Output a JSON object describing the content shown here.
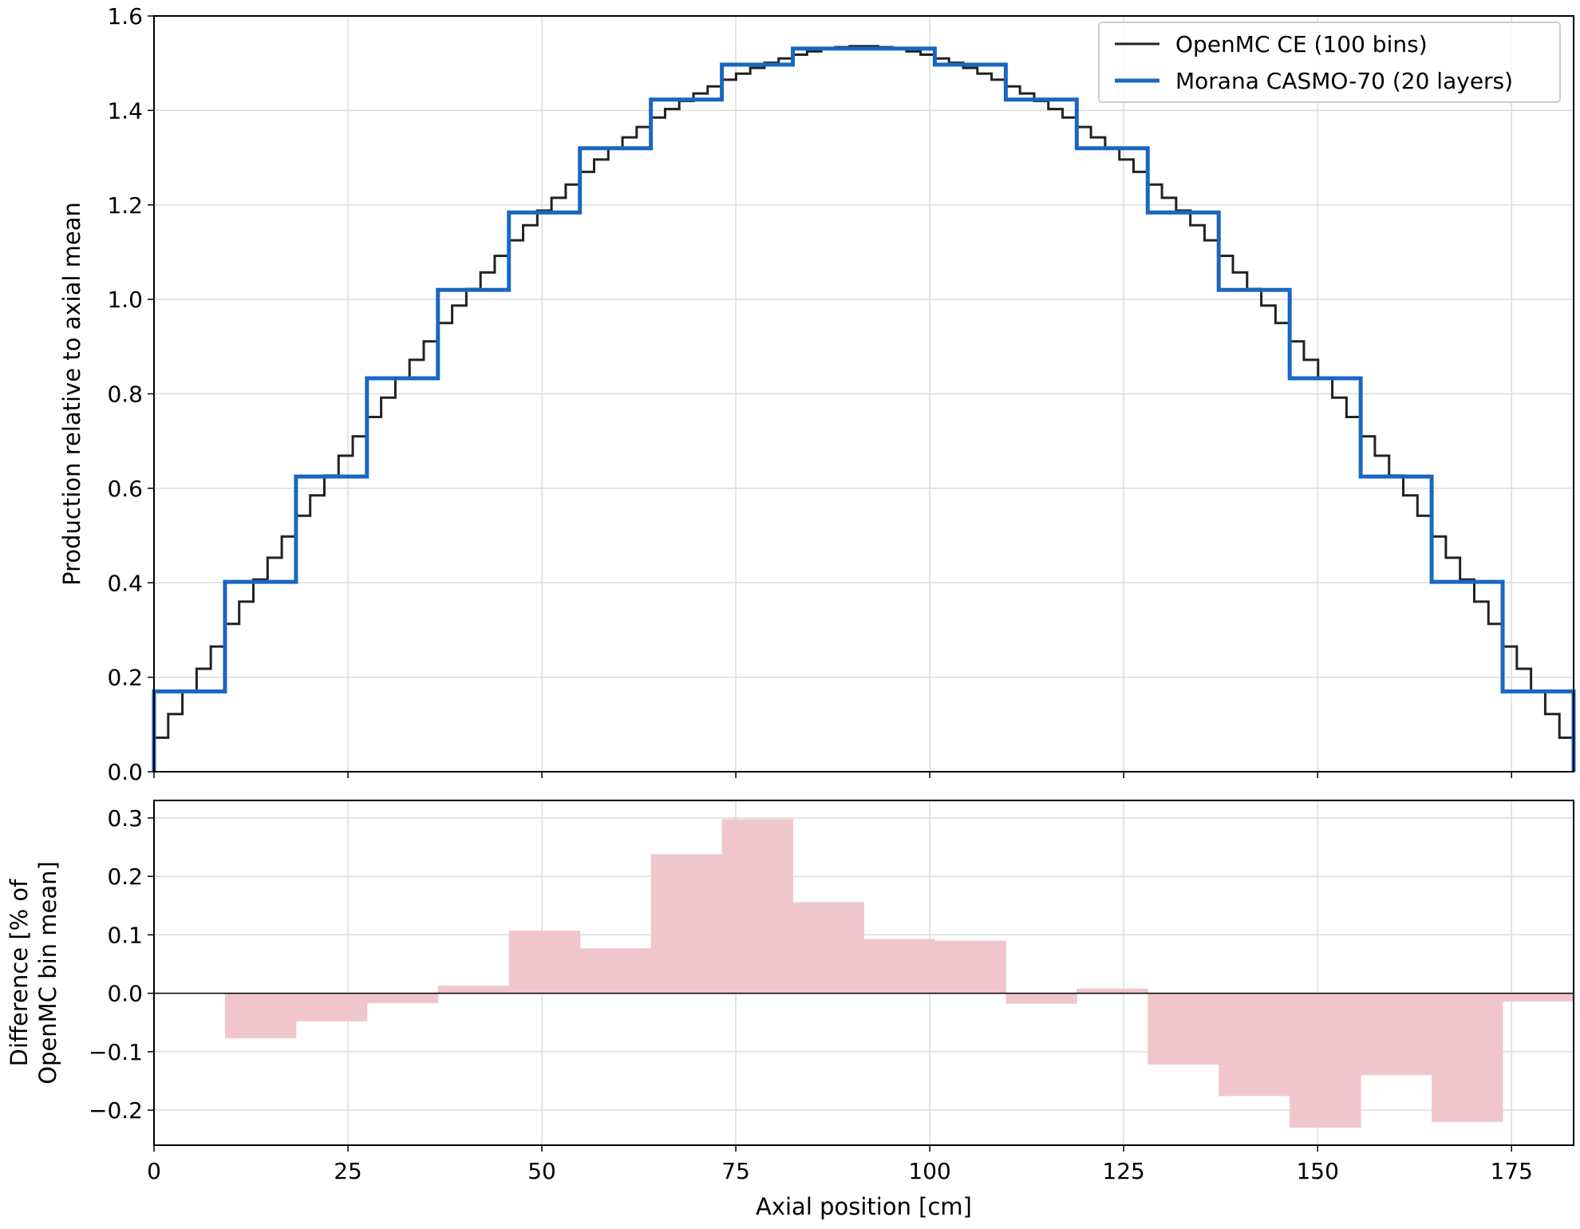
{
  "chart_data": [
    {
      "type": "line",
      "subtype": "step",
      "ylabel": "Production relative to axial mean",
      "xlim": [
        0,
        183
      ],
      "ylim": [
        0,
        1.6
      ],
      "xticks": [
        0,
        25,
        50,
        75,
        100,
        125,
        150,
        175
      ],
      "yticks": [
        0.0,
        0.2,
        0.4,
        0.6,
        0.8,
        1.0,
        1.2,
        1.4,
        1.6
      ],
      "ytick_labels": [
        "0.0",
        "0.2",
        "0.4",
        "0.6",
        "0.8",
        "1.0",
        "1.2",
        "1.4",
        "1.6"
      ],
      "grid": true,
      "legend_position": "top-right",
      "series": [
        {
          "name": "OpenMC CE (100 bins)",
          "color": "#222222",
          "bin_edges_range": [
            0,
            183
          ],
          "bins": 100,
          "values": [
            0.072,
            0.122,
            0.17,
            0.218,
            0.265,
            0.313,
            0.36,
            0.407,
            0.453,
            0.498,
            0.542,
            0.585,
            0.627,
            0.669,
            0.71,
            0.751,
            0.792,
            0.832,
            0.872,
            0.911,
            0.95,
            0.987,
            1.022,
            1.057,
            1.092,
            1.125,
            1.157,
            1.188,
            1.215,
            1.243,
            1.27,
            1.296,
            1.32,
            1.343,
            1.365,
            1.385,
            1.403,
            1.42,
            1.436,
            1.451,
            1.465,
            1.478,
            1.49,
            1.501,
            1.51,
            1.518,
            1.525,
            1.53,
            1.534,
            1.536,
            1.536,
            1.534,
            1.53,
            1.525,
            1.518,
            1.51,
            1.501,
            1.49,
            1.478,
            1.465,
            1.451,
            1.436,
            1.42,
            1.403,
            1.385,
            1.365,
            1.343,
            1.32,
            1.296,
            1.27,
            1.243,
            1.215,
            1.188,
            1.157,
            1.125,
            1.092,
            1.057,
            1.022,
            0.987,
            0.95,
            0.911,
            0.872,
            0.832,
            0.792,
            0.751,
            0.71,
            0.669,
            0.627,
            0.585,
            0.542,
            0.498,
            0.453,
            0.407,
            0.36,
            0.313,
            0.265,
            0.218,
            0.17,
            0.122,
            0.072
          ]
        },
        {
          "name": "Morana CASMO-70 (20 layers)",
          "color": "#1a66c2",
          "bin_edges_range": [
            0,
            183
          ],
          "bins": 20,
          "values": [
            0.17,
            0.402,
            0.625,
            0.833,
            1.02,
            1.184,
            1.32,
            1.423,
            1.497,
            1.531,
            1.531,
            1.497,
            1.423,
            1.32,
            1.184,
            1.02,
            0.833,
            0.625,
            0.402,
            0.17
          ]
        }
      ]
    },
    {
      "type": "bar",
      "subtype": "step-fill",
      "xlabel": "Axial position [cm]",
      "ylabel_lines": [
        "Difference [% of",
        "OpenMC bin mean]"
      ],
      "xlim": [
        0,
        183
      ],
      "ylim": [
        -0.26,
        0.33
      ],
      "xticks": [
        0,
        25,
        50,
        75,
        100,
        125,
        150,
        175
      ],
      "xtick_labels": [
        "0",
        "25",
        "50",
        "75",
        "100",
        "125",
        "150",
        "175"
      ],
      "yticks": [
        -0.2,
        -0.1,
        0.0,
        0.1,
        0.2,
        0.3
      ],
      "ytick_labels": [
        "−0.2",
        "−0.1",
        "0.0",
        "0.1",
        "0.2",
        "0.3"
      ],
      "grid": true,
      "fill_color": "#f0c6cc",
      "bins": 20,
      "values": [
        0.0,
        -0.077,
        -0.048,
        -0.017,
        0.013,
        0.107,
        0.077,
        0.238,
        0.298,
        0.156,
        0.093,
        0.09,
        -0.018,
        0.008,
        -0.122,
        -0.176,
        -0.23,
        -0.14,
        -0.22,
        -0.014
      ]
    }
  ]
}
